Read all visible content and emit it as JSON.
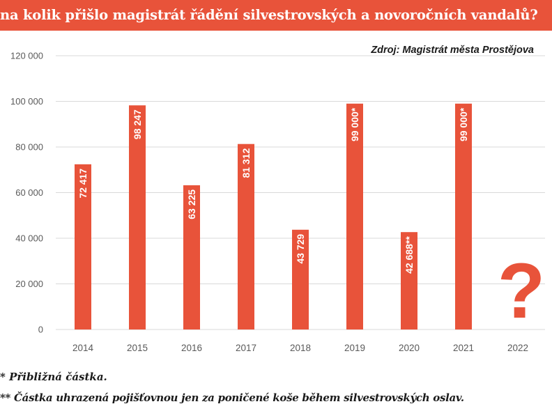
{
  "title": "na kolik přišlo magistrát řádění silvestrovských a novoročních vandalů?",
  "source": "Zdroj: Magistrát města Prostějova",
  "colors": {
    "accent": "#e8533a",
    "grid": "#d9d9d9",
    "axis_text": "#595959"
  },
  "chart_data": {
    "type": "bar",
    "title": "na kolik přišlo magistrát řádění silvestrovských a novoročních vandalů?",
    "xlabel": "",
    "ylabel": "",
    "categories": [
      "2014",
      "2015",
      "2016",
      "2017",
      "2018",
      "2019",
      "2020",
      "2021",
      "2022"
    ],
    "values": [
      72417,
      98247,
      63225,
      81312,
      43729,
      99000,
      42688,
      99000,
      null
    ],
    "data_labels": [
      "72 417",
      "98 247",
      "63 225",
      "81 312",
      "43 729",
      "99 000*",
      "42 688**",
      "99 000*",
      ""
    ],
    "missing_marker": "?",
    "ylim": [
      0,
      120000
    ],
    "yticks": [
      0,
      20000,
      40000,
      60000,
      80000,
      100000,
      120000
    ],
    "ytick_labels": [
      "0",
      "20 000",
      "40 000",
      "60 000",
      "80 000",
      "100 000",
      "120 000"
    ],
    "grid": true,
    "legend": "none"
  },
  "footnotes": [
    "* Přibližná částka.",
    "** Částka uhrazená pojišťovnou jen za poničené koše během silvestrovských oslav."
  ]
}
